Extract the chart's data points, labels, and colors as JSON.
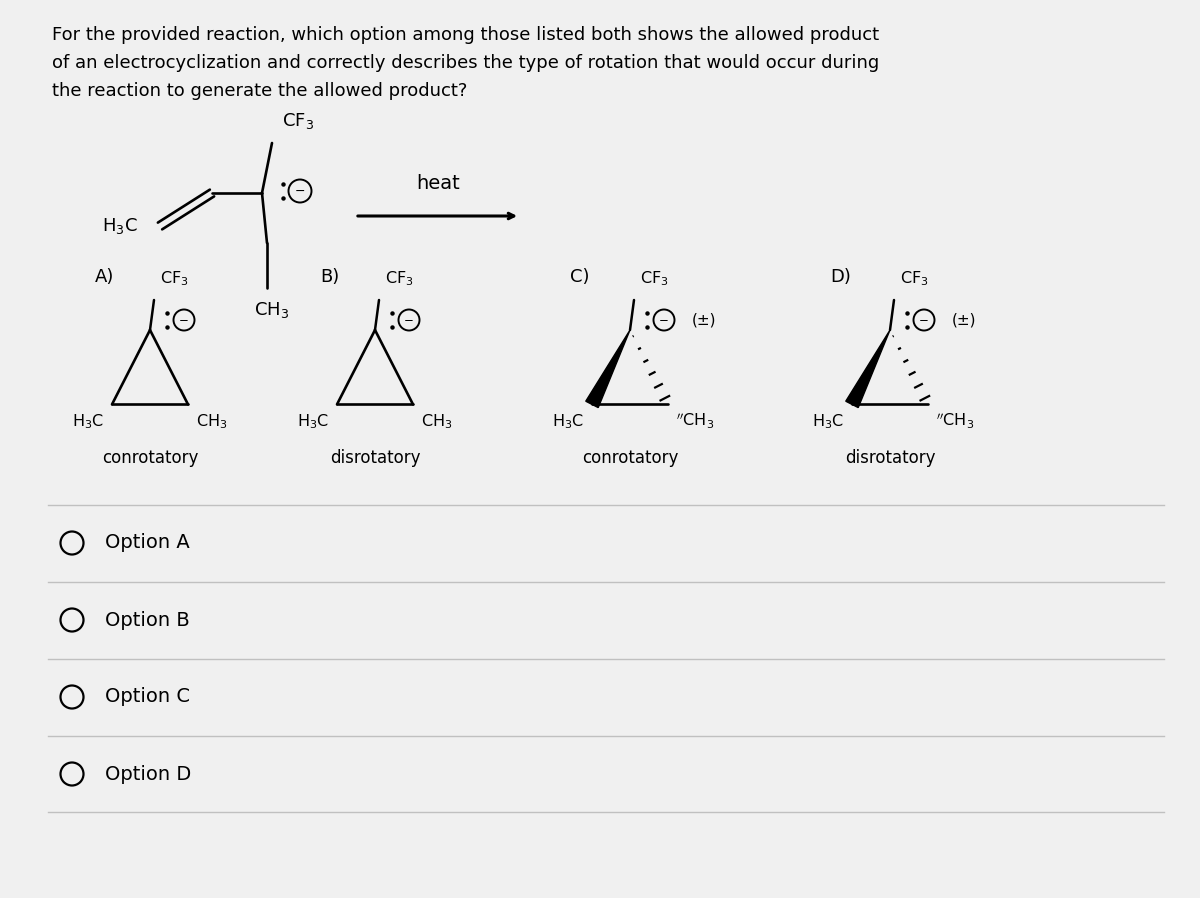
{
  "bg_color": "#f0f0f0",
  "white_panel": "#f0f0f0",
  "text_color": "#1a1a1a",
  "title_lines": [
    "For the provided reaction, which option among those listed both shows the allowed product",
    "of an electrocyclization and correctly describes the type of rotation that would occur during",
    "the reaction to generate the allowed product?"
  ],
  "title_fontsize": 13.0,
  "option_letters": [
    "A)",
    "B)",
    "C)",
    "D)"
  ],
  "rotation_labels": [
    "conrotatory",
    "disrotatory",
    "conrotatory",
    "disrotatory"
  ],
  "choice_labels": [
    "Option A",
    "Option B",
    "Option C",
    "Option D"
  ]
}
